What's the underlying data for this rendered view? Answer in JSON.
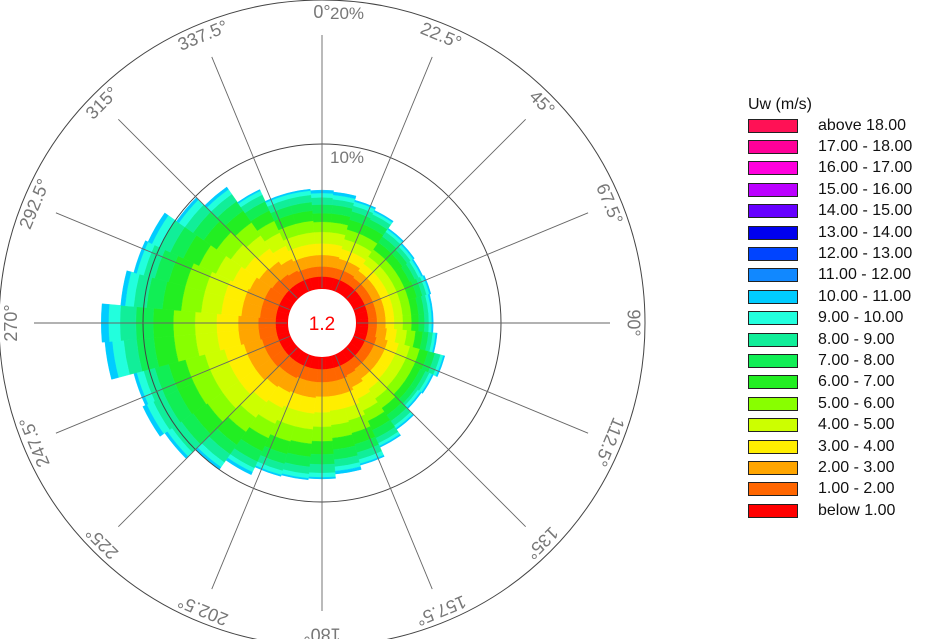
{
  "chart_data": {
    "type": "wind_rose",
    "calm_label": "1.2",
    "direction_labels": [
      "0°",
      "22.5°",
      "45°",
      "67.5°",
      "90°",
      "112.5°",
      "135°",
      "157.5°",
      "180°",
      "202.5°",
      "225°",
      "247.5°",
      "270°",
      "292.5°",
      "315°",
      "337.5°"
    ],
    "radial_labels": [
      "10%",
      "20%"
    ],
    "radial_max": 20,
    "legend_title": "Uw (m/s)",
    "bins": [
      {
        "label": "below 1.00",
        "color": "#ff0000"
      },
      {
        "label": "1.00 - 2.00",
        "color": "#ff6600"
      },
      {
        "label": "2.00 - 3.00",
        "color": "#ffa500"
      },
      {
        "label": "3.00 - 4.00",
        "color": "#ffee00"
      },
      {
        "label": "4.00 - 5.00",
        "color": "#ccff00"
      },
      {
        "label": "5.00 - 6.00",
        "color": "#88ff00"
      },
      {
        "label": "6.00 - 7.00",
        "color": "#22ee22"
      },
      {
        "label": "7.00 - 8.00",
        "color": "#11ee55"
      },
      {
        "label": "8.00 - 9.00",
        "color": "#11ee99"
      },
      {
        "label": "9.00 - 10.00",
        "color": "#22ffdd"
      },
      {
        "label": "10.00 - 11.00",
        "color": "#00ccff"
      },
      {
        "label": "11.00 - 12.00",
        "color": "#1188ff"
      },
      {
        "label": "12.00 - 13.00",
        "color": "#0044ff"
      },
      {
        "label": "13.00 - 14.00",
        "color": "#0000ee"
      },
      {
        "label": "14.00 - 15.00",
        "color": "#6600ff"
      },
      {
        "label": "15.00 - 16.00",
        "color": "#bb00ff"
      },
      {
        "label": "16.00 - 17.00",
        "color": "#ff00dd"
      },
      {
        "label": "17.00 - 18.00",
        "color": "#ff0099"
      },
      {
        "label": "above 18.00",
        "color": "#ff1155"
      }
    ],
    "sectors": [
      {
        "direction": 0,
        "cumulative_percent": [
          0.8,
          1.5,
          2.3,
          3.1,
          3.9,
          4.6,
          5.2,
          5.8,
          6.3,
          6.6,
          6.8
        ]
      },
      {
        "direction": 10,
        "cumulative_percent": [
          0.8,
          1.5,
          2.3,
          3.1,
          3.9,
          4.6,
          5.2,
          5.8,
          6.2,
          6.5,
          6.7
        ]
      },
      {
        "direction": 20,
        "cumulative_percent": [
          0.8,
          1.5,
          2.2,
          2.9,
          3.6,
          4.3,
          5.0,
          5.6,
          6.0,
          6.3,
          6.4
        ]
      },
      {
        "direction": 30,
        "cumulative_percent": [
          0.8,
          1.5,
          2.2,
          2.9,
          3.6,
          4.3,
          5.0,
          5.5,
          5.9,
          6.1,
          6.2
        ]
      },
      {
        "direction": 40,
        "cumulative_percent": [
          0.8,
          1.4,
          2.0,
          2.6,
          3.2,
          3.8,
          4.4,
          4.9,
          5.3,
          5.5,
          5.6
        ]
      },
      {
        "direction": 50,
        "cumulative_percent": [
          0.8,
          1.4,
          2.0,
          2.6,
          3.2,
          3.8,
          4.4,
          4.8,
          5.1,
          5.3,
          5.4
        ]
      },
      {
        "direction": 60,
        "cumulative_percent": [
          0.8,
          1.4,
          2.0,
          2.6,
          3.2,
          3.8,
          4.3,
          4.7,
          5.0,
          5.2,
          5.3
        ]
      },
      {
        "direction": 70,
        "cumulative_percent": [
          0.8,
          1.4,
          2.0,
          2.6,
          3.2,
          3.8,
          4.4,
          4.8,
          5.1,
          5.3,
          5.4
        ]
      },
      {
        "direction": 80,
        "cumulative_percent": [
          0.8,
          1.4,
          2.0,
          2.6,
          3.2,
          3.8,
          4.3,
          4.7,
          5.0,
          5.2,
          5.3
        ]
      },
      {
        "direction": 90,
        "cumulative_percent": [
          0.8,
          1.4,
          2.0,
          2.6,
          3.2,
          3.8,
          4.3,
          4.7,
          5.0,
          5.2,
          5.3
        ]
      },
      {
        "direction": 100,
        "cumulative_percent": [
          0.8,
          1.4,
          2.1,
          2.8,
          3.5,
          4.1,
          4.6,
          5.0,
          5.3,
          5.5,
          5.6
        ]
      },
      {
        "direction": 110,
        "cumulative_percent": [
          0.8,
          1.5,
          2.3,
          3.1,
          3.9,
          4.6,
          5.2,
          5.7,
          6.1,
          6.3,
          6.4
        ]
      },
      {
        "direction": 120,
        "cumulative_percent": [
          0.8,
          1.5,
          2.3,
          3.1,
          3.9,
          4.6,
          5.1,
          5.5,
          5.8,
          6.0,
          6.1
        ]
      },
      {
        "direction": 130,
        "cumulative_percent": [
          0.8,
          1.5,
          2.3,
          3.1,
          3.9,
          4.6,
          5.1,
          5.5,
          5.7,
          5.9,
          6.0
        ]
      },
      {
        "direction": 140,
        "cumulative_percent": [
          0.8,
          1.5,
          2.3,
          3.2,
          4.0,
          4.8,
          5.4,
          5.9,
          6.3,
          6.5,
          6.6
        ]
      },
      {
        "direction": 150,
        "cumulative_percent": [
          0.8,
          1.6,
          2.5,
          3.4,
          4.3,
          5.1,
          5.8,
          6.4,
          6.8,
          7.0,
          7.1
        ]
      },
      {
        "direction": 160,
        "cumulative_percent": [
          0.8,
          1.7,
          2.7,
          3.7,
          4.6,
          5.5,
          6.3,
          6.9,
          7.4,
          7.7,
          7.8
        ]
      },
      {
        "direction": 170,
        "cumulative_percent": [
          0.8,
          1.7,
          2.7,
          3.7,
          4.7,
          5.6,
          6.4,
          7.1,
          7.6,
          7.9,
          8.1
        ]
      },
      {
        "direction": 180,
        "cumulative_percent": [
          0.8,
          1.7,
          2.7,
          3.8,
          4.8,
          5.8,
          6.7,
          7.4,
          8.0,
          8.3,
          8.4
        ]
      },
      {
        "direction": 190,
        "cumulative_percent": [
          0.8,
          1.7,
          2.8,
          3.9,
          5.0,
          6.0,
          6.9,
          7.6,
          8.1,
          8.4,
          8.5
        ]
      },
      {
        "direction": 200,
        "cumulative_percent": [
          0.8,
          1.7,
          2.8,
          3.9,
          5.0,
          6.1,
          7.0,
          7.7,
          8.2,
          8.5,
          8.6
        ]
      },
      {
        "direction": 210,
        "cumulative_percent": [
          0.8,
          1.8,
          2.9,
          4.1,
          5.3,
          6.4,
          7.4,
          8.2,
          8.7,
          9.0,
          9.2
        ]
      },
      {
        "direction": 220,
        "cumulative_percent": [
          0.8,
          1.8,
          3.0,
          4.3,
          5.6,
          6.8,
          7.9,
          8.7,
          9.4,
          9.8,
          10.0
        ]
      },
      {
        "direction": 230,
        "cumulative_percent": [
          0.8,
          1.9,
          3.2,
          4.6,
          6.0,
          7.3,
          8.5,
          9.5,
          10.3,
          10.7,
          10.9
        ]
      },
      {
        "direction": 240,
        "cumulative_percent": [
          0.8,
          1.9,
          3.2,
          4.6,
          6.0,
          7.4,
          8.6,
          9.6,
          10.5,
          11.0,
          11.3
        ]
      },
      {
        "direction": 250,
        "cumulative_percent": [
          0.8,
          1.9,
          3.2,
          4.6,
          6.0,
          7.4,
          8.6,
          9.6,
          10.4,
          10.9,
          11.1
        ]
      },
      {
        "direction": 260,
        "cumulative_percent": [
          0.8,
          2.0,
          3.4,
          4.9,
          6.4,
          7.9,
          9.3,
          10.5,
          11.4,
          12.2,
          12.7
        ]
      },
      {
        "direction": 270,
        "cumulative_percent": [
          0.8,
          2.0,
          3.4,
          4.9,
          6.4,
          7.9,
          9.3,
          10.5,
          11.6,
          12.4,
          12.9
        ]
      },
      {
        "direction": 280,
        "cumulative_percent": [
          0.8,
          1.9,
          3.2,
          4.6,
          6.0,
          7.4,
          8.7,
          9.8,
          10.7,
          11.3,
          11.6
        ]
      },
      {
        "direction": 290,
        "cumulative_percent": [
          0.8,
          1.9,
          3.2,
          4.6,
          6.0,
          7.4,
          8.6,
          9.6,
          10.4,
          10.9,
          11.1
        ]
      },
      {
        "direction": 300,
        "cumulative_percent": [
          0.8,
          1.9,
          3.1,
          4.4,
          5.7,
          7.0,
          8.2,
          9.2,
          10.0,
          10.6,
          10.9
        ]
      },
      {
        "direction": 310,
        "cumulative_percent": [
          0.8,
          1.8,
          2.9,
          4.1,
          5.3,
          6.5,
          7.6,
          8.5,
          9.2,
          9.7,
          9.9
        ]
      },
      {
        "direction": 320,
        "cumulative_percent": [
          0.8,
          1.7,
          2.8,
          3.9,
          5.0,
          6.1,
          7.1,
          7.9,
          8.5,
          8.9,
          9.1
        ]
      },
      {
        "direction": 330,
        "cumulative_percent": [
          0.8,
          1.6,
          2.5,
          3.5,
          4.5,
          5.4,
          6.2,
          6.9,
          7.4,
          7.7,
          7.8
        ]
      },
      {
        "direction": 340,
        "cumulative_percent": [
          0.8,
          1.5,
          2.3,
          3.1,
          3.9,
          4.7,
          5.4,
          6.0,
          6.5,
          6.8,
          6.9
        ]
      },
      {
        "direction": 350,
        "cumulative_percent": [
          0.8,
          1.5,
          2.3,
          3.1,
          3.9,
          4.7,
          5.4,
          6.0,
          6.5,
          6.8,
          6.9
        ]
      }
    ]
  }
}
